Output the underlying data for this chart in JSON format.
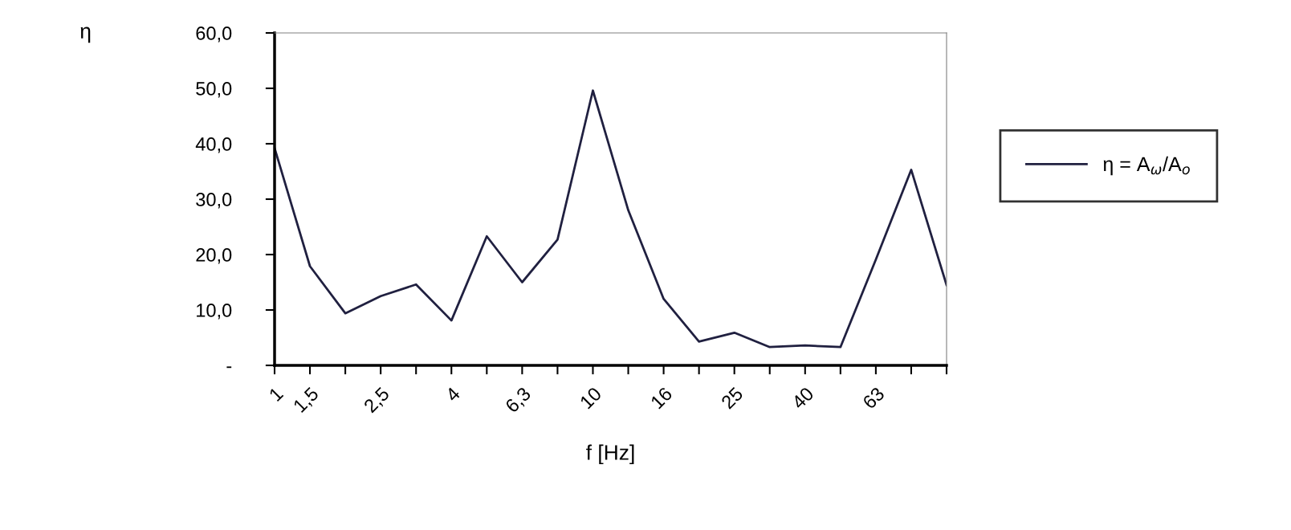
{
  "chart_data": {
    "type": "line",
    "xlabel": "f [Hz]",
    "annotations": [
      "η"
    ],
    "categories": [
      "1",
      "1,5",
      null,
      "2,5",
      null,
      "4",
      null,
      "6,3",
      null,
      "10",
      null,
      "16",
      null,
      "25",
      null,
      "40",
      null,
      "63",
      null,
      null
    ],
    "series": [
      {
        "name": "η = A$_{ω}$/A$_{o}$",
        "color": "#202040",
        "values": [
          39.2,
          17.9,
          9.4,
          12.5,
          14.6,
          8.1,
          23.3,
          15.0,
          22.7,
          49.6,
          28,
          12,
          4.3,
          5.9,
          3.3,
          3.6,
          3.3,
          19.1,
          35.3,
          14.5
        ]
      }
    ],
    "ylim": [
      0,
      60
    ],
    "yticks": [
      {
        "value": 0,
        "label": "-"
      },
      {
        "value": 10,
        "label": "10,0"
      },
      {
        "value": 20,
        "label": "20,0"
      },
      {
        "value": 30,
        "label": "30,0"
      },
      {
        "value": 40,
        "label": "40,0"
      },
      {
        "value": 50,
        "label": "50,0"
      },
      {
        "value": 60,
        "label": "60,0"
      }
    ],
    "legend": "right",
    "grid": false,
    "marker": "none",
    "line_style": "solid"
  }
}
